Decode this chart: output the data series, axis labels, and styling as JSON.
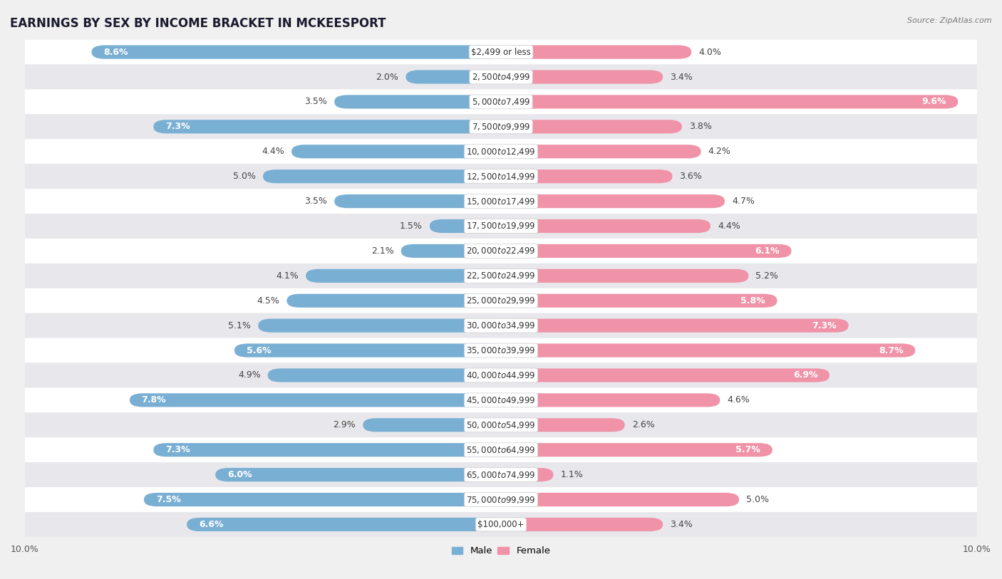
{
  "title": "EARNINGS BY SEX BY INCOME BRACKET IN MCKEESPORT",
  "source": "Source: ZipAtlas.com",
  "categories": [
    "$2,499 or less",
    "$2,500 to $4,999",
    "$5,000 to $7,499",
    "$7,500 to $9,999",
    "$10,000 to $12,499",
    "$12,500 to $14,999",
    "$15,000 to $17,499",
    "$17,500 to $19,999",
    "$20,000 to $22,499",
    "$22,500 to $24,999",
    "$25,000 to $29,999",
    "$30,000 to $34,999",
    "$35,000 to $39,999",
    "$40,000 to $44,999",
    "$45,000 to $49,999",
    "$50,000 to $54,999",
    "$55,000 to $64,999",
    "$65,000 to $74,999",
    "$75,000 to $99,999",
    "$100,000+"
  ],
  "male_values": [
    8.6,
    2.0,
    3.5,
    7.3,
    4.4,
    5.0,
    3.5,
    1.5,
    2.1,
    4.1,
    4.5,
    5.1,
    5.6,
    4.9,
    7.8,
    2.9,
    7.3,
    6.0,
    7.5,
    6.6
  ],
  "female_values": [
    4.0,
    3.4,
    9.6,
    3.8,
    4.2,
    3.6,
    4.7,
    4.4,
    6.1,
    5.2,
    5.8,
    7.3,
    8.7,
    6.9,
    4.6,
    2.6,
    5.7,
    1.1,
    5.0,
    3.4
  ],
  "male_color": "#7aafd4",
  "female_color": "#f093a8",
  "axis_limit": 10.0,
  "background_color": "#f0f0f0",
  "row_color_even": "#ffffff",
  "row_color_odd": "#e8e8ec",
  "title_fontsize": 12,
  "label_fontsize": 9,
  "cat_fontsize": 8.5,
  "tick_fontsize": 9,
  "source_fontsize": 8,
  "bar_height": 0.55,
  "inner_label_threshold": 5.5
}
